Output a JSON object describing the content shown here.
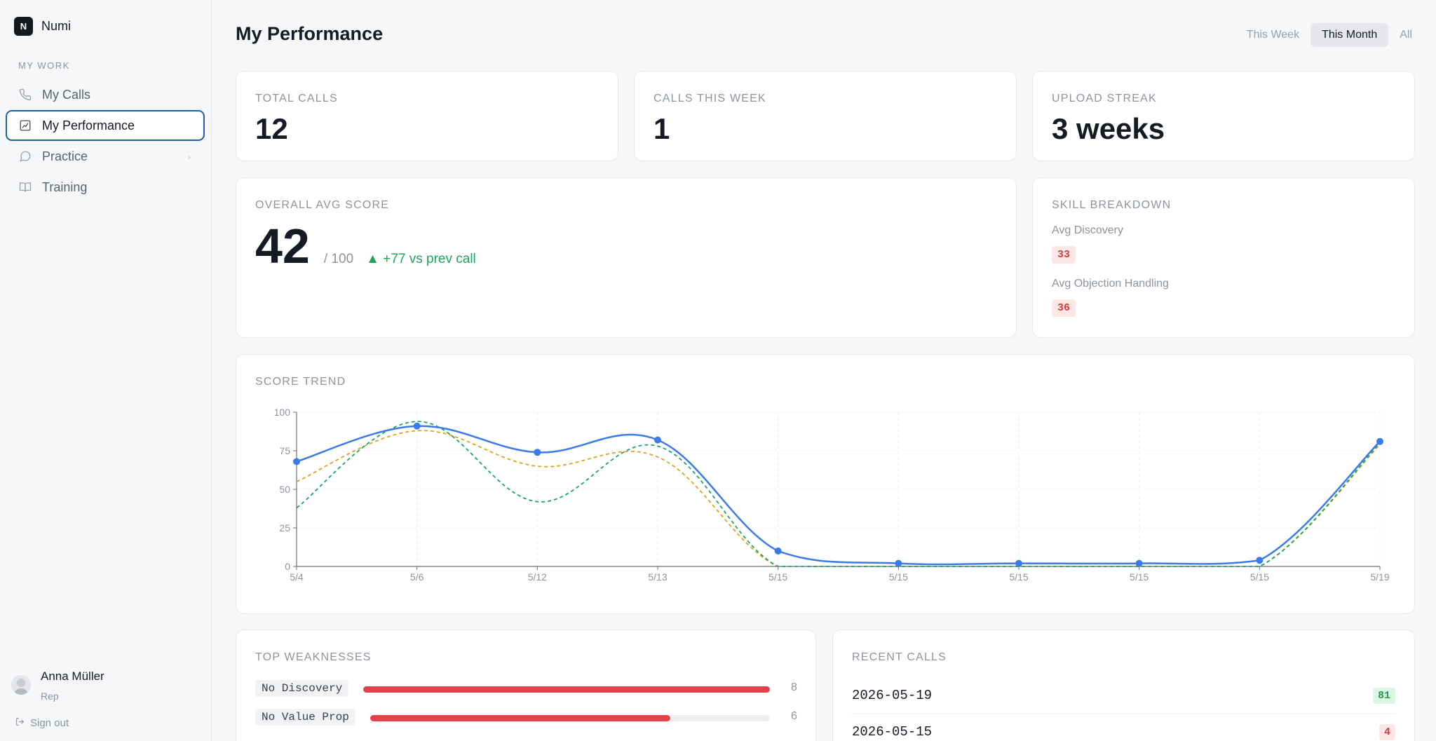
{
  "app": {
    "name": "Numi",
    "logo_letter": "N"
  },
  "sidebar": {
    "section_label": "MY WORK",
    "items": [
      {
        "label": "My Calls",
        "icon": "phone-icon"
      },
      {
        "label": "My Performance",
        "icon": "chart-icon",
        "active": true
      },
      {
        "label": "Practice",
        "icon": "chat-bubble-icon",
        "has_chevron": true
      },
      {
        "label": "Training",
        "icon": "book-icon"
      }
    ],
    "user": {
      "name": "Anna Müller",
      "role": "Rep"
    },
    "sign_out_label": "Sign out"
  },
  "header": {
    "title": "My Performance",
    "range_tabs": [
      {
        "label": "This Week"
      },
      {
        "label": "This Month",
        "active": true
      },
      {
        "label": "All"
      }
    ]
  },
  "stats": {
    "total_calls": {
      "label": "TOTAL CALLS",
      "value": "12"
    },
    "calls_this_week": {
      "label": "CALLS THIS WEEK",
      "value": "1"
    },
    "upload_streak": {
      "label": "UPLOAD STREAK",
      "value": "3 weeks"
    }
  },
  "overall": {
    "label": "OVERALL AVG SCORE",
    "value": "42",
    "denominator": "/ 100",
    "delta": "▲ +77 vs prev call"
  },
  "skills": {
    "label": "SKILL BREAKDOWN",
    "items": [
      {
        "label": "Avg Discovery",
        "value": "33"
      },
      {
        "label": "Avg Objection Handling",
        "value": "36"
      }
    ]
  },
  "trend": {
    "label": "SCORE TREND"
  },
  "chart_data": {
    "type": "line",
    "x": [
      "5/4",
      "5/6",
      "5/12",
      "5/13",
      "5/15",
      "5/15",
      "5/15",
      "5/15",
      "5/15",
      "5/19"
    ],
    "ylim": [
      0,
      100
    ],
    "yticks": [
      0,
      25,
      50,
      75,
      100
    ],
    "grid": true,
    "series": [
      {
        "color": "#3b7be8",
        "style": "solid",
        "markers": true,
        "values": [
          68,
          91,
          74,
          82,
          10,
          2,
          2,
          2,
          4,
          81
        ]
      },
      {
        "color": "#e0a21b",
        "style": "dashed",
        "markers": false,
        "values": [
          55,
          88,
          65,
          71,
          0,
          0,
          0,
          0,
          0,
          79
        ]
      },
      {
        "color": "#1aa46a",
        "style": "dashed",
        "markers": false,
        "values": [
          38,
          94,
          42,
          78,
          0,
          0,
          0,
          0,
          0,
          80
        ]
      }
    ],
    "colors": {
      "axis": "#6b7079",
      "grid": "#eceef1",
      "tick_text": "#8d939c"
    }
  },
  "weaknesses": {
    "label": "TOP WEAKNESSES",
    "max": 8,
    "items": [
      {
        "tag": "No Discovery",
        "count": "8",
        "value": 8
      },
      {
        "tag": "No Value Prop",
        "count": "6",
        "value": 6
      }
    ]
  },
  "recent": {
    "label": "RECENT CALLS",
    "items": [
      {
        "date": "2026-05-19",
        "score": "81",
        "status": "good"
      },
      {
        "date": "2026-05-15",
        "score": "4",
        "status": "bad"
      }
    ]
  }
}
